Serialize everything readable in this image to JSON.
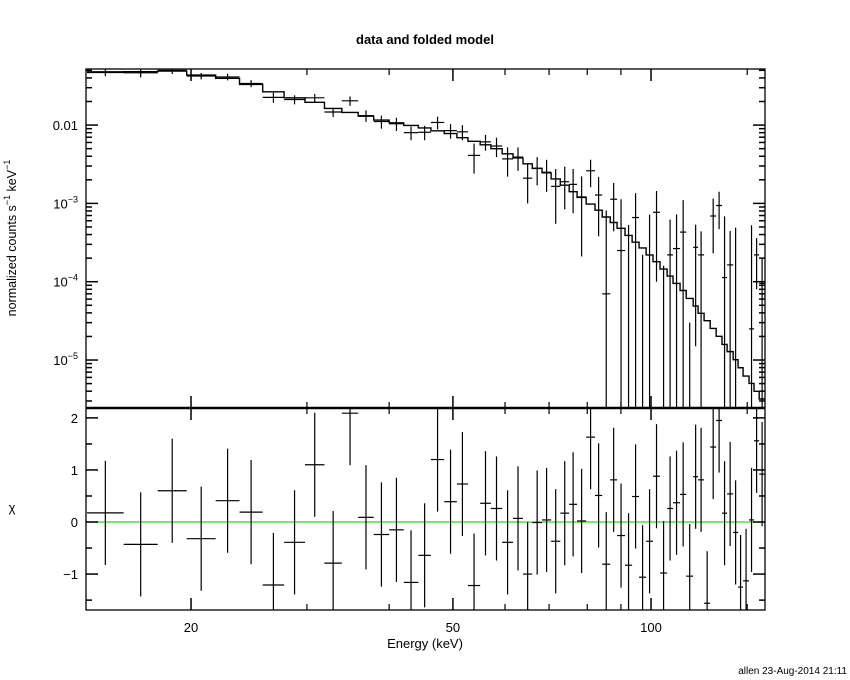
{
  "chart_data": [
    {
      "type": "step-histogram with error bars",
      "title": "data and folded model",
      "xlabel": "",
      "ylabel": "normalized counts s^-1 keV^-1",
      "ylabel_parts": {
        "main": "normalized counts s",
        "exp1": "−1",
        "mid": " keV",
        "exp2": "−1"
      },
      "x_scale": "log",
      "y_scale": "log",
      "xlim": [
        13.85,
        149
      ],
      "ylim": [
        2.44e-06,
        0.052
      ],
      "y_ticks": [
        {
          "value": 0.01,
          "label": "0.01"
        },
        {
          "value": 0.001,
          "label": "10",
          "exp": "−3"
        },
        {
          "value": 0.0001,
          "label": "10",
          "exp": "−4"
        },
        {
          "value": 1e-05,
          "label": "10",
          "exp": "−5"
        }
      ],
      "bin_edges_keV": [
        13.9,
        15.8,
        17.8,
        19.7,
        21.8,
        23.7,
        25.7,
        27.7,
        29.8,
        31.9,
        33.9,
        35.9,
        37.9,
        40.0,
        42.1,
        44.3,
        46.3,
        48.5,
        50.7,
        52.7,
        55.0,
        57.1,
        59.4,
        61.7,
        63.9,
        66.0,
        68.3,
        70.5,
        72.8,
        75.1,
        77.2,
        79.7,
        82.2,
        84.3,
        86.7,
        88.8,
        91.3,
        93.6,
        95.9,
        98.3,
        100.7,
        103.2,
        105.8,
        108.0,
        110.7,
        113.1,
        115.9,
        117.9,
        120.4,
        123.0,
        125.6,
        128.2,
        130.5,
        133.3,
        135.6,
        138.0,
        140.9,
        143.4,
        146.0,
        149.0
      ],
      "data": [
        0.048,
        0.0466,
        0.05,
        0.0423,
        0.0412,
        0.034,
        0.0226,
        0.0212,
        0.0223,
        0.0147,
        0.0204,
        0.0132,
        0.0111,
        0.0104,
        0.008,
        0.0081,
        0.0108,
        0.0085,
        0.0082,
        0.0041,
        0.0061,
        0.0054,
        0.0037,
        0.0039,
        0.0021,
        0.0028,
        0.0025,
        0.00165,
        0.00189,
        0.00175,
        0.00121,
        0.00261,
        0.00128,
        7e-05,
        0.00113,
        0.00025,
        -0.00032,
        0.00066,
        -0.00068,
        -8e-05,
        0.00077,
        -0.00064,
        0.00022,
        0.000265,
        0.00043,
        -0.00067,
        0.000275,
        0.00022,
        -0.00106,
        0.00069,
        0.00094,
        0.000113,
        0.000164,
        -0.00011,
        -0.00074,
        -0.00067,
        2.5e-05,
        0.00022,
        9.52e-05
      ],
      "data_error": [
        0.006,
        0.006,
        0.005,
        0.004,
        0.004,
        0.0035,
        0.0033,
        0.0028,
        0.0026,
        0.002,
        0.0028,
        0.0022,
        0.0021,
        0.002,
        0.0016,
        0.0017,
        0.002,
        0.0018,
        0.0018,
        0.0017,
        0.0014,
        0.0015,
        0.0015,
        0.0013,
        0.0011,
        0.0011,
        0.0011,
        0.0011,
        0.00105,
        0.001,
        0.001,
        0.001,
        0.0009,
        0.00074,
        0.00069,
        0.00088,
        0.00085,
        0.00069,
        0.0009,
        0.0008,
        0.00067,
        0.0008,
        0.0004,
        0.00046,
        0.00067,
        0.0007,
        0.00026,
        0.00022,
        0.0007,
        0.00046,
        0.00047,
        0.00057,
        0.00028,
        0.0006,
        0.0006,
        0.0006,
        0.0005,
        0.00014,
        0.0001
      ],
      "model": [
        0.047,
        0.048,
        0.049,
        0.0435,
        0.0396,
        0.0331,
        0.0266,
        0.0223,
        0.0195,
        0.0163,
        0.0145,
        0.013,
        0.0116,
        0.0107,
        0.0099,
        0.0092,
        0.00846,
        0.0078,
        0.0069,
        0.0062,
        0.0056,
        0.005,
        0.0043,
        0.0038,
        0.0032,
        0.0028,
        0.00246,
        0.00205,
        0.00171,
        0.00141,
        0.00119,
        0.00098,
        0.00082,
        0.00067,
        0.00057,
        0.00048,
        0.00039,
        0.00032,
        0.00027,
        0.00022,
        0.00018,
        0.000145,
        0.000118,
        9.5e-05,
        7.72e-05,
        6.12e-05,
        4.89e-05,
        3.95e-05,
        3.18e-05,
        2.53e-05,
        2.01e-05,
        1.58e-05,
        1.28e-05,
        1.01e-05,
        7.97e-06,
        6.24e-06,
        5.02e-06,
        3.98e-06,
        3.18e-06
      ],
      "colors": {
        "data": "#000000",
        "model": "#000000"
      }
    },
    {
      "type": "scatter with error bars",
      "xlabel": "Energy (keV)",
      "ylabel": "χ",
      "x_scale": "log",
      "xlim": [
        13.85,
        149
      ],
      "ylim": [
        -1.69,
        2.19
      ],
      "x_ticks": [
        {
          "value": 20,
          "label": "20"
        },
        {
          "value": 50,
          "label": "50"
        },
        {
          "value": 100,
          "label": "100"
        }
      ],
      "x_minor_ticks": [
        30,
        40,
        60,
        70,
        80,
        90,
        140
      ],
      "y_ticks": [
        {
          "value": 2,
          "label": "2"
        },
        {
          "value": 1,
          "label": "1"
        },
        {
          "value": 0,
          "label": "0"
        },
        {
          "value": -1,
          "label": "−1"
        }
      ],
      "residuals": [
        0.175,
        -0.43,
        0.6,
        -0.32,
        0.41,
        0.19,
        -1.21,
        -0.39,
        1.1,
        -0.79,
        2.09,
        0.09,
        -0.24,
        -0.15,
        -1.16,
        -0.64,
        1.2,
        0.39,
        0.73,
        -1.22,
        0.36,
        0.26,
        -0.39,
        0.07,
        -1.0,
        -0.01,
        0.04,
        -0.37,
        0.17,
        0.34,
        0.02,
        1.63,
        0.51,
        -0.81,
        0.81,
        -0.26,
        -0.83,
        0.49,
        -1.06,
        -0.37,
        0.88,
        -0.98,
        0.26,
        0.37,
        0.53,
        -1.04,
        0.87,
        0.81,
        -1.56,
        1.44,
        1.95,
        0.17,
        0.54,
        -0.2,
        -1.25,
        -1.13,
        0.04,
        1.56,
        0.92
      ],
      "residual_error": 1,
      "zero_line": 0,
      "colors": {
        "zero_line": "#22dd22",
        "data": "#000000"
      }
    }
  ],
  "footer": "allen 23-Aug-2014 21:11"
}
